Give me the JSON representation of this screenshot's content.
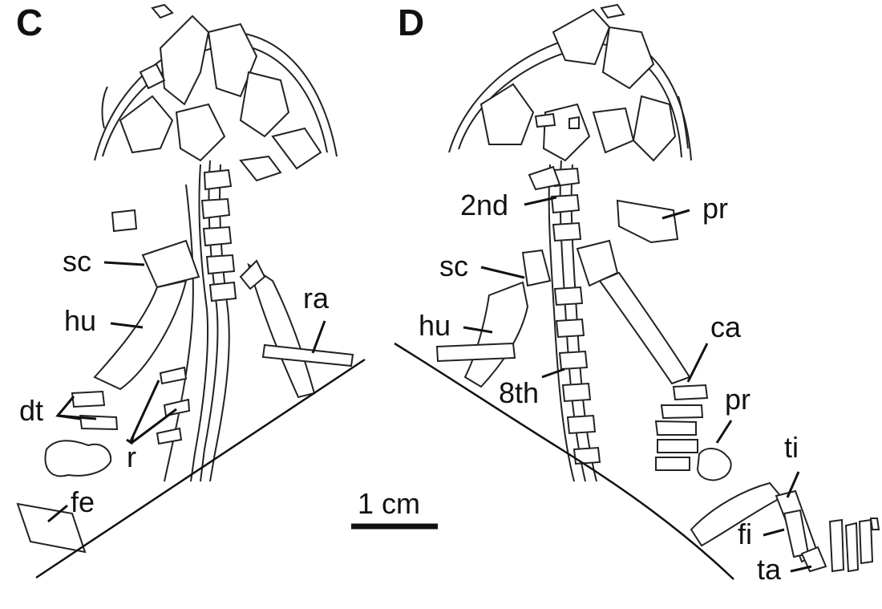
{
  "panels": [
    {
      "letter": "C",
      "labels": {
        "sc": "sc",
        "hu": "hu",
        "ra": "ra",
        "dt": "dt",
        "r": "r",
        "fe": "fe"
      }
    },
    {
      "letter": "D",
      "labels": {
        "second": "2nd",
        "pr_top": "pr",
        "sc": "sc",
        "hu": "hu",
        "ca": "ca",
        "eighth": "8th",
        "pr_bottom": "pr",
        "ti": "ti",
        "fi": "fi",
        "ta": "ta"
      }
    }
  ],
  "scale_bar": {
    "label": "1 cm"
  }
}
